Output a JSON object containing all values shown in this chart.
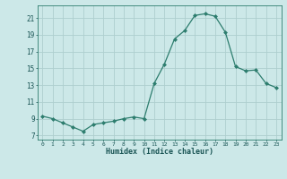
{
  "x": [
    0,
    1,
    2,
    3,
    4,
    5,
    6,
    7,
    8,
    9,
    10,
    11,
    12,
    13,
    14,
    15,
    16,
    17,
    18,
    19,
    20,
    21,
    22,
    23
  ],
  "y": [
    9.3,
    9.0,
    8.5,
    8.0,
    7.5,
    8.3,
    8.5,
    8.7,
    9.0,
    9.2,
    9.0,
    13.2,
    15.5,
    18.5,
    19.5,
    21.3,
    21.5,
    21.2,
    19.3,
    15.2,
    14.7,
    14.8,
    13.2,
    12.7
  ],
  "line_color": "#2d7d6e",
  "marker_color": "#2d7d6e",
  "bg_color": "#cce8e8",
  "grid_color": "#aecece",
  "xlabel": "Humidex (Indice chaleur)",
  "xlim": [
    -0.5,
    23.5
  ],
  "ylim": [
    6.5,
    22.5
  ],
  "yticks": [
    7,
    9,
    11,
    13,
    15,
    17,
    19,
    21
  ],
  "xticks": [
    0,
    1,
    2,
    3,
    4,
    5,
    6,
    7,
    8,
    9,
    10,
    11,
    12,
    13,
    14,
    15,
    16,
    17,
    18,
    19,
    20,
    21,
    22,
    23
  ]
}
